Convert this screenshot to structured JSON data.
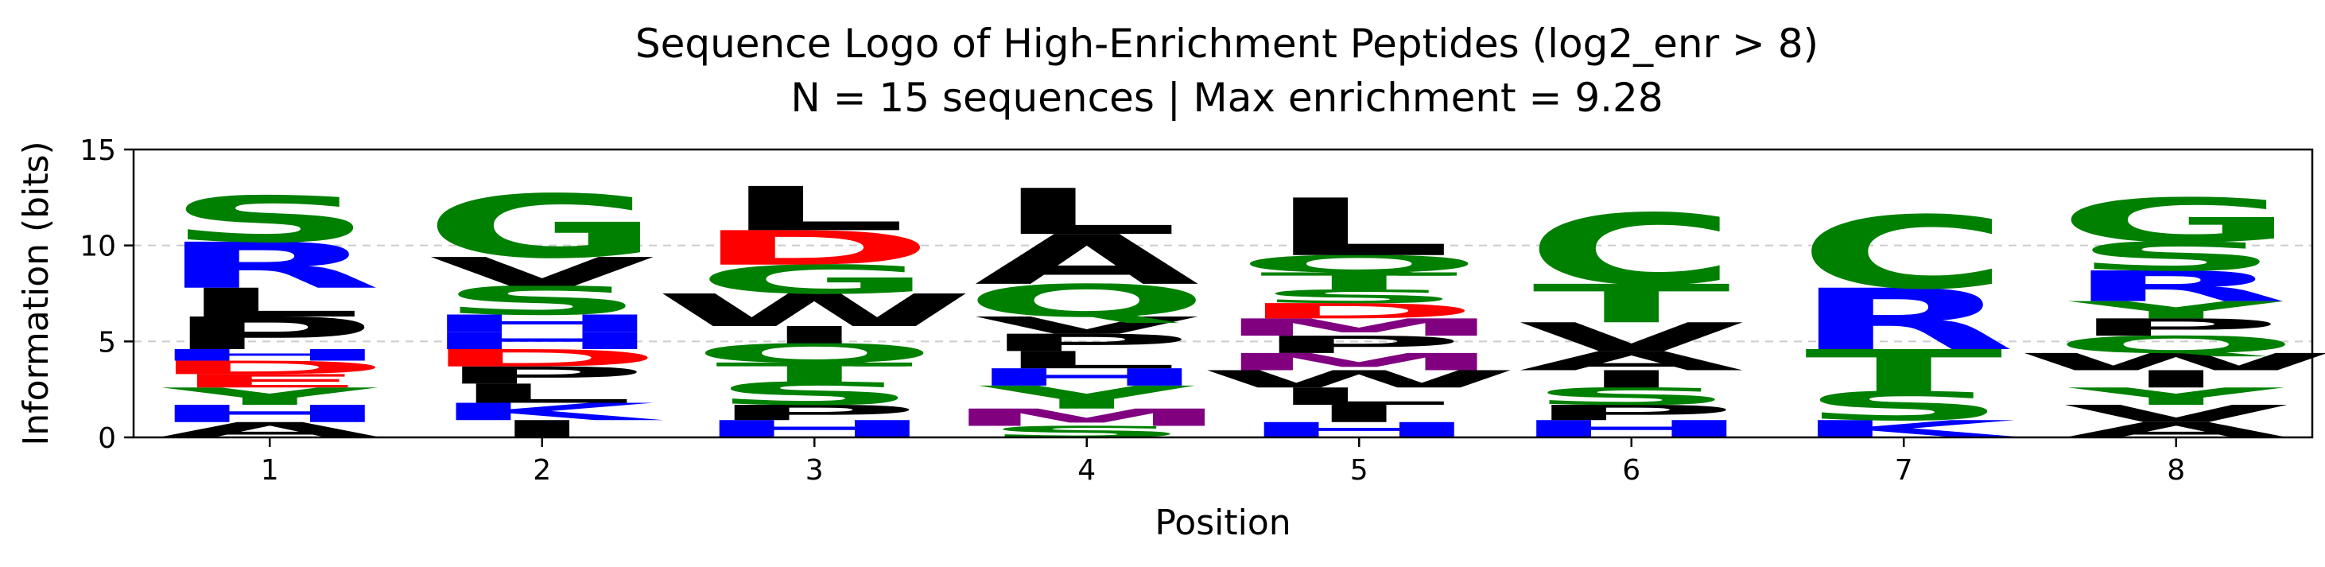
{
  "chart_data": {
    "type": "sequence-logo",
    "title": "Sequence Logo of High-Enrichment Peptides (log2_enr > 8)",
    "subtitle": "N = 15 sequences | Max enrichment = 9.28",
    "xlabel": "Position",
    "ylabel": "Information (bits)",
    "ylim": [
      0,
      15
    ],
    "yticks": [
      0,
      5,
      10,
      15
    ],
    "grid": "horizontal dashed",
    "colors": {
      "S": "#008000",
      "G": "#008000",
      "C": "#008000",
      "T": "#008000",
      "Y": "#008000",
      "Q": "#008000",
      "N": "#008000",
      "R": "#0000ff",
      "K": "#0000ff",
      "H": "#0000ff",
      "D": "#ff0000",
      "E": "#ff0000",
      "M": "#800080",
      "A": "#000000",
      "V": "#000000",
      "L": "#000000",
      "I": "#000000",
      "P": "#000000",
      "W": "#000000",
      "F": "#000000"
    },
    "positions": [
      {
        "label": "1",
        "stack": [
          {
            "letter": "A",
            "height": 0.8
          },
          {
            "letter": "H",
            "height": 0.9
          },
          {
            "letter": "Y",
            "height": 0.9
          },
          {
            "letter": "E",
            "height": 0.7
          },
          {
            "letter": "D",
            "height": 0.7
          },
          {
            "letter": "H",
            "height": 0.6
          },
          {
            "letter": "P",
            "height": 1.7
          },
          {
            "letter": "L",
            "height": 1.5
          },
          {
            "letter": "R",
            "height": 2.4
          },
          {
            "letter": "S",
            "height": 2.4
          }
        ]
      },
      {
        "label": "2",
        "stack": [
          {
            "letter": "I",
            "height": 0.9
          },
          {
            "letter": "K",
            "height": 0.9
          },
          {
            "letter": "L",
            "height": 1.0
          },
          {
            "letter": "P",
            "height": 0.9
          },
          {
            "letter": "D",
            "height": 0.9
          },
          {
            "letter": "H",
            "height": 0.9
          },
          {
            "letter": "H",
            "height": 0.9
          },
          {
            "letter": "S",
            "height": 1.5
          },
          {
            "letter": "V",
            "height": 1.5
          },
          {
            "letter": "G",
            "height": 3.3
          }
        ]
      },
      {
        "label": "3",
        "stack": [
          {
            "letter": "H",
            "height": 0.9
          },
          {
            "letter": "P",
            "height": 0.8
          },
          {
            "letter": "S",
            "height": 1.2
          },
          {
            "letter": "T",
            "height": 1.0
          },
          {
            "letter": "Q",
            "height": 1.0
          },
          {
            "letter": "I",
            "height": 0.9
          },
          {
            "letter": "W",
            "height": 1.7
          },
          {
            "letter": "G",
            "height": 1.5
          },
          {
            "letter": "D",
            "height": 1.8
          },
          {
            "letter": "L",
            "height": 2.3
          }
        ]
      },
      {
        "label": "4",
        "stack": [
          {
            "letter": "S",
            "height": 0.6
          },
          {
            "letter": "M",
            "height": 0.9
          },
          {
            "letter": "Y",
            "height": 1.2
          },
          {
            "letter": "H",
            "height": 0.9
          },
          {
            "letter": "L",
            "height": 0.9
          },
          {
            "letter": "P",
            "height": 0.9
          },
          {
            "letter": "V",
            "height": 0.9
          },
          {
            "letter": "Q",
            "height": 1.7
          },
          {
            "letter": "A",
            "height": 2.6
          },
          {
            "letter": "L",
            "height": 2.4
          }
        ]
      },
      {
        "label": "5",
        "stack": [
          {
            "letter": "H",
            "height": 0.8
          },
          {
            "letter": "I",
            "height": 0.9
          },
          {
            "letter": "L",
            "height": 0.9
          },
          {
            "letter": "W",
            "height": 0.9
          },
          {
            "letter": "M",
            "height": 0.9
          },
          {
            "letter": "P",
            "height": 0.9
          },
          {
            "letter": "M",
            "height": 0.9
          },
          {
            "letter": "D",
            "height": 0.8
          },
          {
            "letter": "S",
            "height": 0.7
          },
          {
            "letter": "T",
            "height": 0.9
          },
          {
            "letter": "Q",
            "height": 0.9
          },
          {
            "letter": "L",
            "height": 3.0
          }
        ]
      },
      {
        "label": "6",
        "stack": [
          {
            "letter": "H",
            "height": 0.9
          },
          {
            "letter": "P",
            "height": 0.8
          },
          {
            "letter": "S",
            "height": 0.9
          },
          {
            "letter": "I",
            "height": 0.9
          },
          {
            "letter": "A",
            "height": 1.0
          },
          {
            "letter": "V",
            "height": 1.5
          },
          {
            "letter": "T",
            "height": 2.0
          },
          {
            "letter": "C",
            "height": 3.7
          }
        ]
      },
      {
        "label": "7",
        "stack": [
          {
            "letter": "K",
            "height": 0.9
          },
          {
            "letter": "S",
            "height": 1.5
          },
          {
            "letter": "T",
            "height": 2.2
          },
          {
            "letter": "R",
            "height": 3.2
          },
          {
            "letter": "C",
            "height": 3.8
          }
        ]
      },
      {
        "label": "8",
        "stack": [
          {
            "letter": "A",
            "height": 0.8
          },
          {
            "letter": "V",
            "height": 0.9
          },
          {
            "letter": "Y",
            "height": 0.9
          },
          {
            "letter": "I",
            "height": 0.9
          },
          {
            "letter": "W",
            "height": 0.9
          },
          {
            "letter": "Q",
            "height": 0.9
          },
          {
            "letter": "P",
            "height": 0.9
          },
          {
            "letter": "Y",
            "height": 0.9
          },
          {
            "letter": "R",
            "height": 1.6
          },
          {
            "letter": "S",
            "height": 1.5
          },
          {
            "letter": "G",
            "height": 2.3
          }
        ]
      }
    ]
  }
}
